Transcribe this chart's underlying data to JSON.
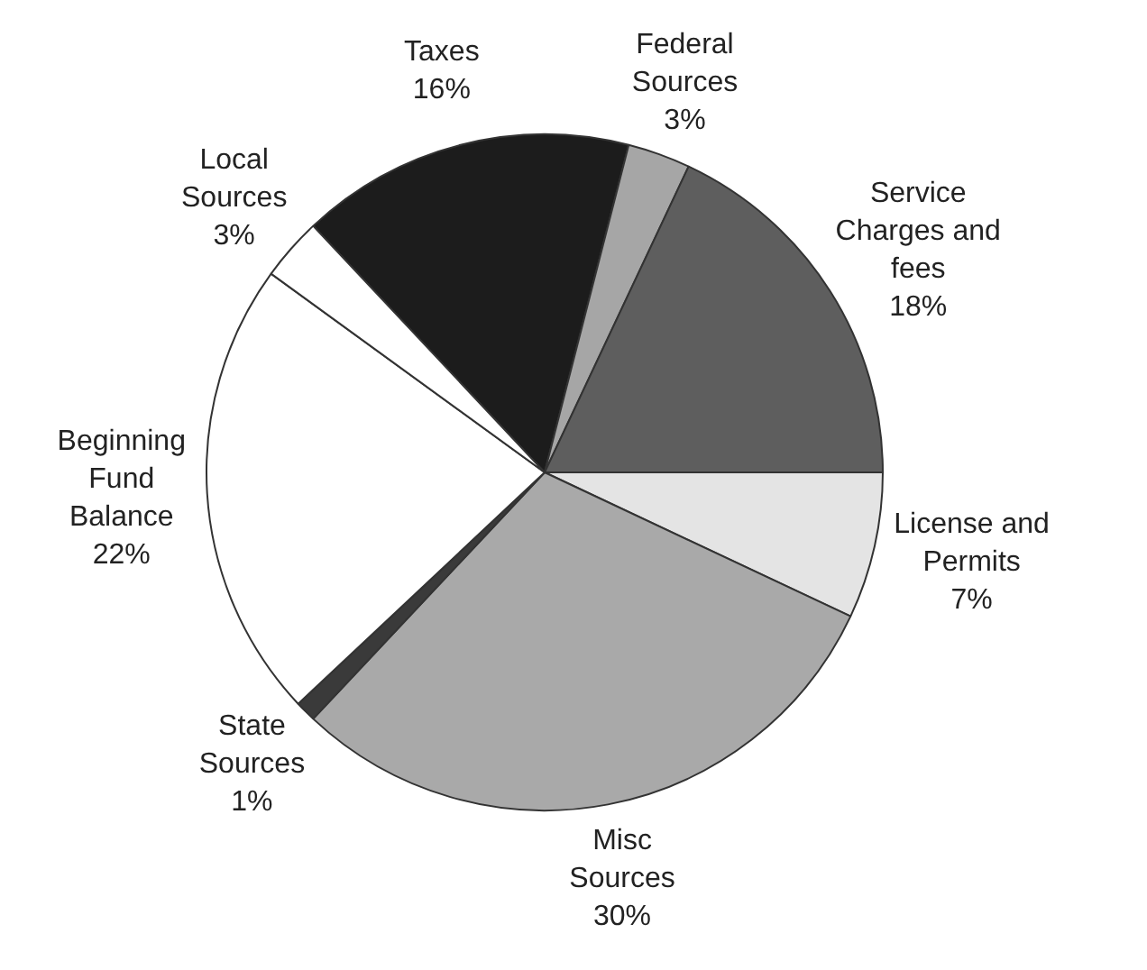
{
  "chart_data": {
    "type": "pie",
    "categories": [
      "Taxes",
      "Federal Sources",
      "Service Charges and fees",
      "License and Permits",
      "Misc Sources",
      "State Sources",
      "Beginning Fund Balance",
      "Local Sources"
    ],
    "values": [
      16,
      3,
      18,
      7,
      30,
      1,
      22,
      3
    ],
    "value_labels": [
      "16%",
      "3%",
      "18%",
      "7%",
      "30%",
      "1%",
      "22%",
      "3%"
    ],
    "colors": [
      "#1c1c1c",
      "#a6a6a6",
      "#5e5e5e",
      "#e4e4e4",
      "#a9a9a9",
      "#3a3a3a",
      "#ffffff",
      "#ffffff"
    ],
    "legend": false
  }
}
